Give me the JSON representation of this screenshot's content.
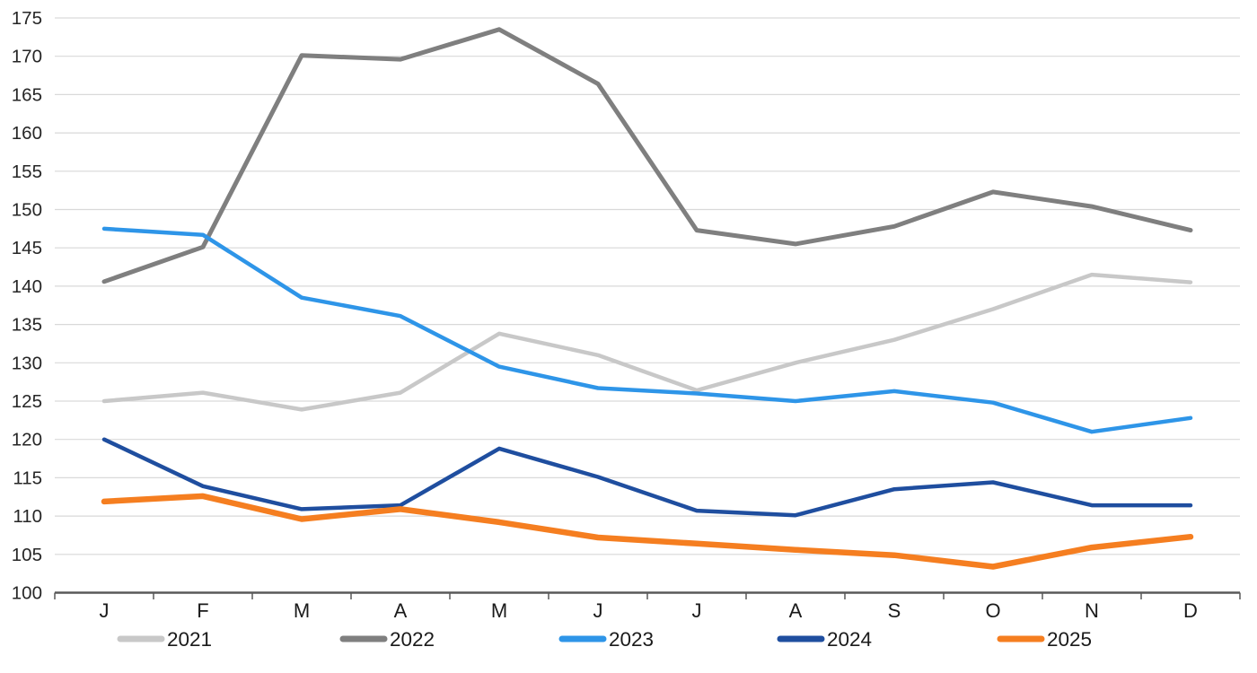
{
  "chart_data": {
    "type": "line",
    "title": "",
    "xlabel": "",
    "ylabel": "",
    "categories": [
      "J",
      "F",
      "M",
      "A",
      "M",
      "J",
      "J",
      "A",
      "S",
      "O",
      "N",
      "D"
    ],
    "yticks": [
      100,
      105,
      110,
      115,
      120,
      125,
      130,
      135,
      140,
      145,
      150,
      155,
      160,
      165,
      170,
      175
    ],
    "ylim": [
      100,
      175
    ],
    "grid": "horizontal",
    "legend_position": "bottom",
    "colors": {
      "background": "#ffffff",
      "gridline": "#d9d9d9",
      "axis": "#595959",
      "tick_label": "#262626",
      "legend_label": "#1a1a1a"
    },
    "series": [
      {
        "name": "2021",
        "color": "#c8c8c8",
        "values": [
          125.0,
          126.1,
          123.9,
          126.1,
          133.8,
          131.0,
          126.4,
          130.0,
          133.0,
          137.0,
          141.5,
          140.5
        ]
      },
      {
        "name": "2022",
        "color": "#7f7f7f",
        "values": [
          140.6,
          145.1,
          170.1,
          169.6,
          173.5,
          166.4,
          147.3,
          145.5,
          147.8,
          152.3,
          150.4,
          147.3
        ]
      },
      {
        "name": "2023",
        "color": "#2e95e8",
        "values": [
          147.5,
          146.7,
          138.5,
          136.1,
          129.5,
          126.7,
          126.0,
          125.0,
          126.3,
          124.8,
          121.0,
          122.8
        ]
      },
      {
        "name": "2024",
        "color": "#1f4e9f",
        "values": [
          120.0,
          113.9,
          110.9,
          111.4,
          118.8,
          115.1,
          110.7,
          110.1,
          113.5,
          114.4,
          111.4,
          111.4
        ]
      },
      {
        "name": "2025",
        "color": "#f57e20",
        "values": [
          111.9,
          112.6,
          109.6,
          110.9,
          109.2,
          107.2,
          106.4,
          105.6,
          104.9,
          103.4,
          105.9,
          107.3
        ]
      }
    ]
  }
}
